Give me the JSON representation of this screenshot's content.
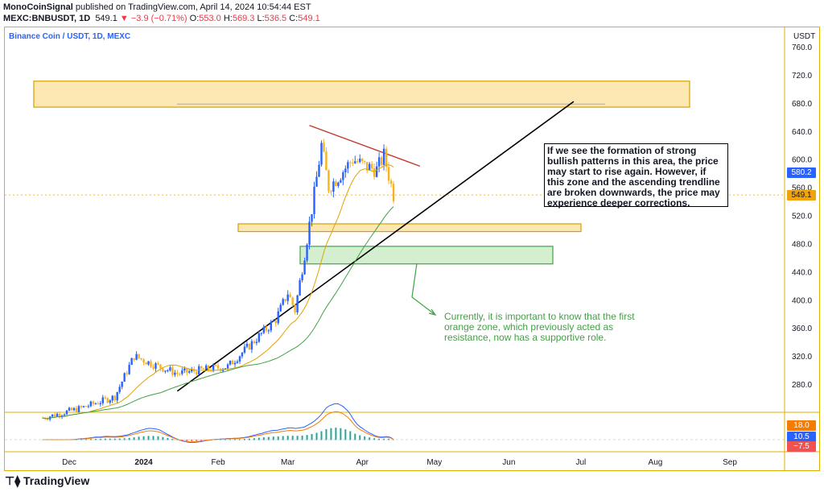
{
  "header": {
    "author": "MonoCoinSignal",
    "published": "published on TradingView.com, April 14, 2024 10:54:44 EST",
    "symbol": "MEXC:BNBUSDT, 1D",
    "last": "549.1",
    "change": "−3.9 (−0.71%)",
    "o_label": "O:",
    "o_val": "553.0",
    "h_label": "H:",
    "h_val": "569.3",
    "l_label": "L:",
    "l_val": "536.5",
    "c_label": "C:",
    "c_val": "549.1"
  },
  "chart_title": "Binance Coin / USDT, 1D, MEXC",
  "currency": "USDT",
  "brand": "TradingView",
  "annotations": {
    "box1": "If we see the formation of strong bullish patterns in this area, the price may start to rise again. However, if this zone and the ascending trendline are broken downwards, the price may experience deeper corrections.",
    "box2": "Currently, it is important to know that the first orange zone, which previously acted as resistance, now has a supportive role."
  },
  "price_tags": {
    "blue": "580.2",
    "last": "549.1",
    "macd_orange": "18.0",
    "macd_blue": "10.5",
    "macd_red": "−7.5"
  },
  "colors": {
    "up": "#2962ff",
    "down": "#f7b21f",
    "zone_orange": "#fde7b3",
    "zone_green": "#d4efd0",
    "trend_red": "#c0392b",
    "ma": "#43a047",
    "ema": "#e0a400"
  },
  "chart_data": {
    "type": "candlestick",
    "x_ticks": [
      "Dec",
      "2024",
      "Feb",
      "Mar",
      "Apr",
      "May",
      "Jun",
      "Jul",
      "Aug",
      "Sep"
    ],
    "y_ticks": [
      280,
      320,
      360,
      400,
      440,
      480,
      520,
      560,
      600,
      640,
      680,
      720,
      760
    ],
    "ylim": [
      240,
      770
    ],
    "ticker_last": 549.1,
    "zones": [
      {
        "name": "upper orange zone",
        "from": 711,
        "to": 674
      },
      {
        "name": "first orange zone",
        "from": 508,
        "to": 497
      },
      {
        "name": "green zone",
        "from": 476,
        "to": 451
      }
    ],
    "levels": [
      660
    ],
    "trendlines": [
      {
        "name": "ascending trendline",
        "from": [
          "2024-01-15",
          270
        ],
        "to": [
          "2024-06-28",
          682
        ]
      },
      {
        "name": "descending trendline",
        "from": [
          "2024-03-10",
          648
        ],
        "to": [
          "2024-04-25",
          590
        ]
      }
    ],
    "price_path": [
      [
        "2023-11-20",
        232
      ],
      [
        "2023-12-05",
        245
      ],
      [
        "2023-12-20",
        262
      ],
      [
        "2023-12-28",
        320
      ],
      [
        "2024-01-05",
        308
      ],
      [
        "2024-01-15",
        295
      ],
      [
        "2024-01-25",
        300
      ],
      [
        "2024-02-05",
        305
      ],
      [
        "2024-02-15",
        338
      ],
      [
        "2024-02-25",
        372
      ],
      [
        "2024-03-01",
        410
      ],
      [
        "2024-03-04",
        385
      ],
      [
        "2024-03-08",
        465
      ],
      [
        "2024-03-12",
        550
      ],
      [
        "2024-03-15",
        620
      ],
      [
        "2024-03-18",
        560
      ],
      [
        "2024-03-22",
        575
      ],
      [
        "2024-03-28",
        600
      ],
      [
        "2024-04-02",
        590
      ],
      [
        "2024-04-07",
        585
      ],
      [
        "2024-04-10",
        605
      ],
      [
        "2024-04-14",
        549
      ]
    ]
  }
}
